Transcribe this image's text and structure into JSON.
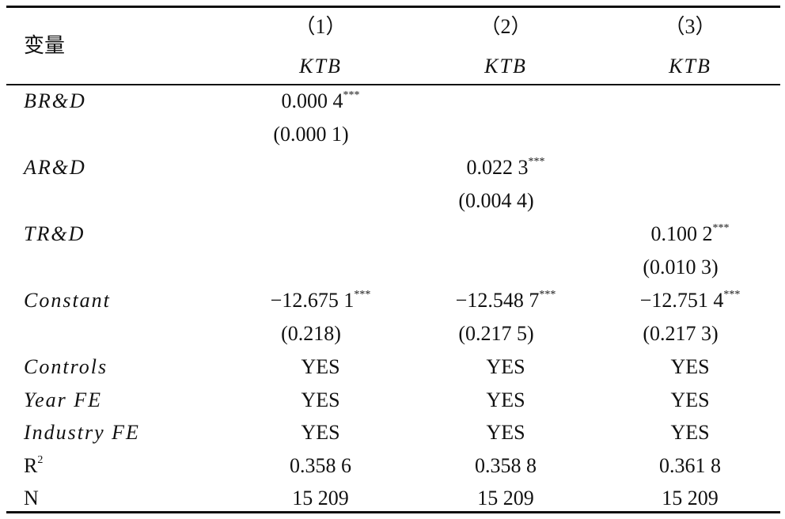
{
  "table": {
    "header": {
      "label": "变量",
      "columns": [
        {
          "num": "（1）",
          "dep": "KTB"
        },
        {
          "num": "（2）",
          "dep": "KTB"
        },
        {
          "num": "（3）",
          "dep": "KTB"
        }
      ]
    },
    "rows": [
      {
        "label": "BR&D",
        "italic": true,
        "cells": [
          {
            "coef": "0.000 4",
            "stars": "***",
            "se": "(0.000 1)"
          },
          null,
          null
        ]
      },
      {
        "label": "AR&D",
        "italic": true,
        "cells": [
          null,
          {
            "coef": "0.022 3",
            "stars": "***",
            "se": "(0.004 4)"
          },
          null
        ]
      },
      {
        "label": "TR&D",
        "italic": true,
        "cells": [
          null,
          null,
          {
            "coef": "0.100 2",
            "stars": "***",
            "se": "(0.010 3)"
          }
        ]
      },
      {
        "label": "Constant",
        "italic": true,
        "cells": [
          {
            "coef": "−12.675 1",
            "stars": "***",
            "se": "(0.218)"
          },
          {
            "coef": "−12.548 7",
            "stars": "***",
            "se": "(0.217 5)"
          },
          {
            "coef": "−12.751 4",
            "stars": "***",
            "se": "(0.217 3)"
          }
        ]
      },
      {
        "label": "Controls",
        "italic": true,
        "cells": [
          {
            "coef": "YES"
          },
          {
            "coef": "YES"
          },
          {
            "coef": "YES"
          }
        ]
      },
      {
        "label": "Year FE",
        "italic": true,
        "cells": [
          {
            "coef": "YES"
          },
          {
            "coef": "YES"
          },
          {
            "coef": "YES"
          }
        ]
      },
      {
        "label": "Industry FE",
        "italic": true,
        "cells": [
          {
            "coef": "YES"
          },
          {
            "coef": "YES"
          },
          {
            "coef": "YES"
          }
        ]
      },
      {
        "label": "R",
        "label_sup": "2",
        "italic": false,
        "cells": [
          {
            "coef": "0.358 6"
          },
          {
            "coef": "0.358 8"
          },
          {
            "coef": "0.361 8"
          }
        ]
      },
      {
        "label": "N",
        "italic": false,
        "cells": [
          {
            "coef": "15 209"
          },
          {
            "coef": "15 209"
          },
          {
            "coef": "15 209"
          }
        ]
      }
    ]
  }
}
